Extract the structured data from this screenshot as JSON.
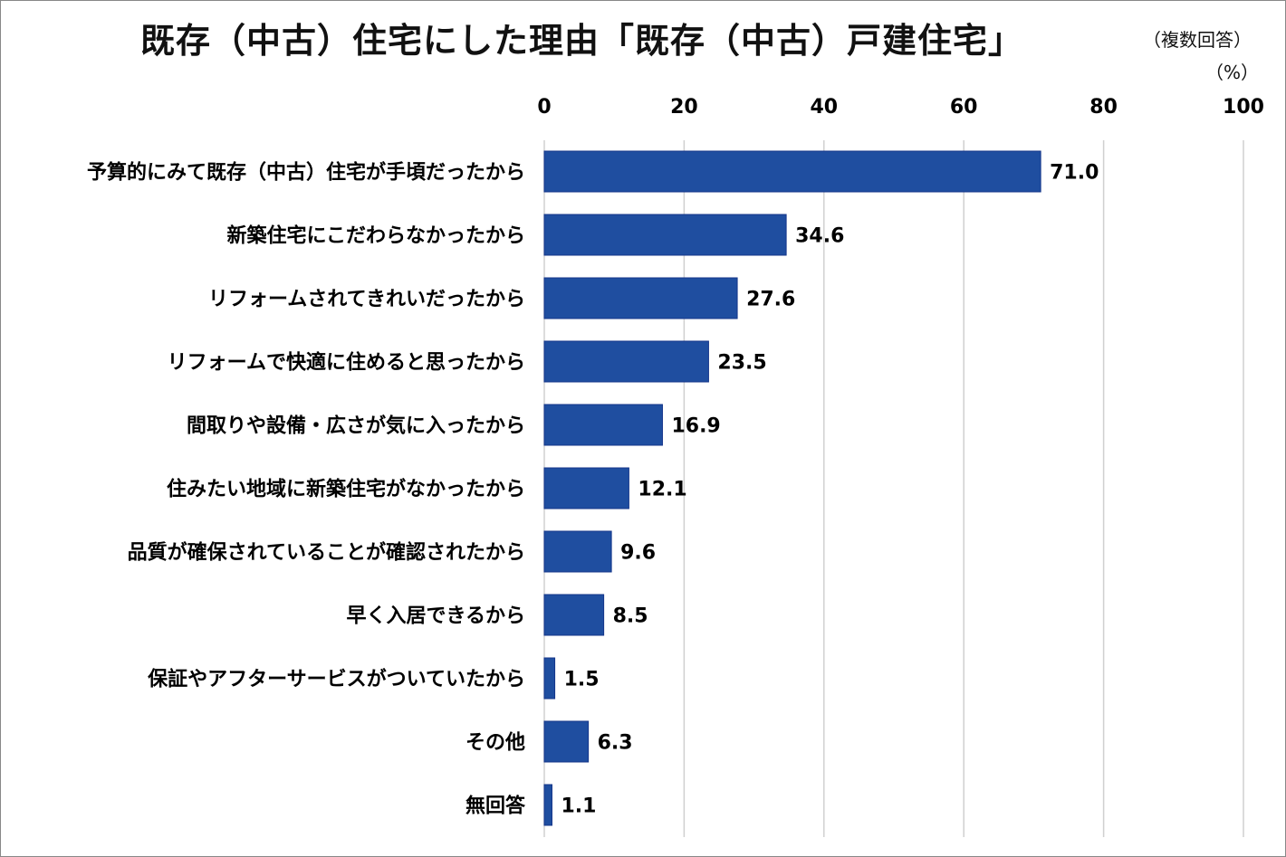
{
  "chart_data": {
    "type": "bar",
    "orientation": "horizontal",
    "title": "既存（中古）住宅にした理由「既存（中古）戸建住宅」",
    "subtitle": "（複数回答）",
    "unit_label": "（%）",
    "categories": [
      "予算的にみて既存（中古）住宅が手頃だったから",
      "新築住宅にこだわらなかったから",
      "リフォームされてきれいだったから",
      "リフォームで快適に住めると思ったから",
      "間取りや設備・広さが気に入ったから",
      "住みたい地域に新築住宅がなかったから",
      "品質が確保されていることが確認されたから",
      "早く入居できるから",
      "保証やアフターサービスがついていたから",
      "その他",
      "無回答"
    ],
    "values": [
      71.0,
      34.6,
      27.6,
      23.5,
      16.9,
      12.1,
      9.6,
      8.5,
      1.5,
      6.3,
      1.1
    ],
    "xlim": [
      0,
      100
    ],
    "xticks": [
      "0",
      "20",
      "40",
      "60",
      "80",
      "100"
    ],
    "axis_position": "top",
    "grid": true,
    "bar_color": "#1f4ea0",
    "bar_border_color": "#14358a",
    "grid_color": "#d0d0d0"
  }
}
